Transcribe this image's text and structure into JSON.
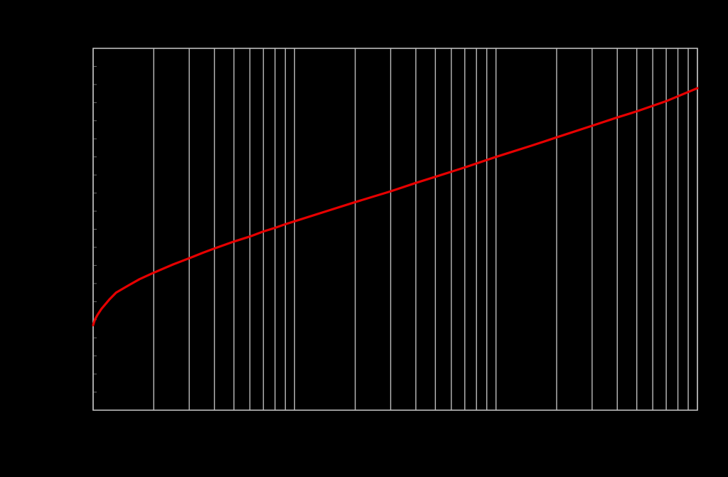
{
  "chart_data": {
    "type": "line",
    "title": "",
    "xlabel": "",
    "ylabel": "",
    "x_scale": "log",
    "xlim": [
      1,
      1000
    ],
    "ylim": [
      0,
      1
    ],
    "x_gridlines": [
      1,
      2,
      3,
      4,
      5,
      6,
      7,
      8,
      9,
      10,
      20,
      30,
      40,
      50,
      60,
      70,
      80,
      90,
      100,
      200,
      300,
      400,
      500,
      600,
      700,
      800,
      900,
      1000
    ],
    "y_gridlines": [],
    "y_minor_ticks": 20,
    "grid": true,
    "legend": "none",
    "series": [
      {
        "color": "#e60000",
        "x": [
          1,
          1.02,
          1.05,
          1.1,
          1.2,
          1.3,
          1.5,
          1.7,
          2,
          2.5,
          3,
          3.5,
          4,
          4.5,
          5,
          6,
          7,
          8,
          9,
          10,
          15,
          20,
          30,
          40,
          50,
          70,
          100,
          150,
          200,
          300,
          400,
          500,
          700,
          1000
        ],
        "y": [
          0.235,
          0.25,
          0.263,
          0.28,
          0.305,
          0.325,
          0.345,
          0.362,
          0.38,
          0.403,
          0.42,
          0.435,
          0.447,
          0.457,
          0.466,
          0.48,
          0.494,
          0.504,
          0.514,
          0.522,
          0.553,
          0.575,
          0.605,
          0.628,
          0.645,
          0.671,
          0.7,
          0.731,
          0.754,
          0.786,
          0.809,
          0.826,
          0.854,
          0.89
        ]
      }
    ]
  }
}
